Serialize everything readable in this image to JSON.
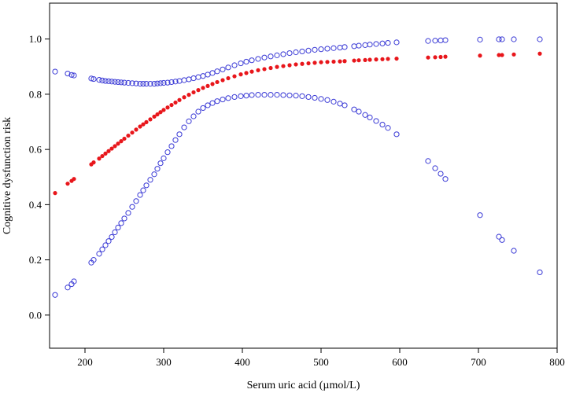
{
  "chart_data": {
    "type": "scatter",
    "title": "",
    "xlabel": "Serum uric acid (µmol/L)",
    "ylabel": "Cognitive dysfunction risk",
    "xlim": [
      155,
      800
    ],
    "ylim": [
      -0.12,
      1.13
    ],
    "xticks": [
      200,
      300,
      400,
      500,
      600,
      700,
      800
    ],
    "yticks": [
      0.0,
      0.2,
      0.4,
      0.6,
      0.8,
      1.0
    ],
    "xtick_labels": [
      "200",
      "300",
      "400",
      "500",
      "600",
      "700",
      "800"
    ],
    "ytick_labels": [
      "0.0",
      "0.2",
      "0.4",
      "0.6",
      "0.8",
      "1.0"
    ],
    "grid": false,
    "legend": "none",
    "colors": {
      "estimate": "#e8161b",
      "confidence_band": "#3c3cd6"
    },
    "x": [
      162,
      178,
      183,
      186,
      208,
      211,
      218,
      222,
      226,
      230,
      234,
      238,
      242,
      246,
      250,
      255,
      260,
      265,
      270,
      274,
      278,
      283,
      288,
      292,
      296,
      300,
      305,
      310,
      315,
      320,
      326,
      332,
      338,
      344,
      350,
      356,
      362,
      368,
      375,
      382,
      390,
      398,
      405,
      412,
      420,
      428,
      436,
      444,
      452,
      460,
      468,
      476,
      484,
      492,
      500,
      508,
      516,
      524,
      530,
      542,
      548,
      556,
      562,
      570,
      578,
      585,
      596,
      636,
      645,
      652,
      658,
      702,
      726,
      730,
      745,
      778
    ],
    "series": [
      {
        "name": "upper 95% CI",
        "marker": "open-circle",
        "values": [
          0.882,
          0.875,
          0.87,
          0.868,
          0.857,
          0.855,
          0.852,
          0.85,
          0.848,
          0.847,
          0.846,
          0.845,
          0.844,
          0.843,
          0.842,
          0.841,
          0.84,
          0.839,
          0.838,
          0.838,
          0.838,
          0.838,
          0.838,
          0.839,
          0.84,
          0.841,
          0.842,
          0.844,
          0.846,
          0.848,
          0.851,
          0.854,
          0.858,
          0.862,
          0.866,
          0.871,
          0.877,
          0.883,
          0.89,
          0.897,
          0.905,
          0.912,
          0.918,
          0.923,
          0.928,
          0.933,
          0.937,
          0.941,
          0.945,
          0.949,
          0.952,
          0.955,
          0.958,
          0.961,
          0.963,
          0.965,
          0.967,
          0.969,
          0.971,
          0.974,
          0.976,
          0.978,
          0.98,
          0.982,
          0.984,
          0.986,
          0.988,
          0.993,
          0.994,
          0.995,
          0.996,
          0.998,
          0.999,
          0.999,
          0.999,
          0.999
        ]
      },
      {
        "name": "estimate",
        "marker": "filled-circle",
        "values": [
          0.442,
          0.476,
          0.486,
          0.493,
          0.546,
          0.553,
          0.567,
          0.576,
          0.585,
          0.594,
          0.603,
          0.612,
          0.621,
          0.63,
          0.639,
          0.65,
          0.661,
          0.672,
          0.683,
          0.691,
          0.699,
          0.709,
          0.719,
          0.727,
          0.735,
          0.743,
          0.752,
          0.761,
          0.77,
          0.779,
          0.789,
          0.798,
          0.807,
          0.815,
          0.823,
          0.83,
          0.837,
          0.844,
          0.851,
          0.858,
          0.865,
          0.872,
          0.877,
          0.882,
          0.887,
          0.891,
          0.895,
          0.899,
          0.902,
          0.905,
          0.908,
          0.91,
          0.912,
          0.914,
          0.916,
          0.917,
          0.918,
          0.919,
          0.92,
          0.922,
          0.923,
          0.924,
          0.925,
          0.926,
          0.927,
          0.928,
          0.929,
          0.933,
          0.934,
          0.935,
          0.936,
          0.94,
          0.942,
          0.942,
          0.944,
          0.947
        ]
      },
      {
        "name": "lower 95% CI",
        "marker": "open-circle",
        "values": [
          0.073,
          0.1,
          0.112,
          0.122,
          0.19,
          0.2,
          0.222,
          0.238,
          0.253,
          0.268,
          0.283,
          0.3,
          0.317,
          0.333,
          0.35,
          0.37,
          0.392,
          0.413,
          0.435,
          0.452,
          0.47,
          0.49,
          0.51,
          0.53,
          0.55,
          0.568,
          0.59,
          0.612,
          0.634,
          0.655,
          0.68,
          0.702,
          0.72,
          0.737,
          0.75,
          0.76,
          0.768,
          0.775,
          0.781,
          0.786,
          0.79,
          0.793,
          0.795,
          0.797,
          0.798,
          0.798,
          0.798,
          0.798,
          0.797,
          0.796,
          0.795,
          0.793,
          0.79,
          0.787,
          0.783,
          0.779,
          0.773,
          0.766,
          0.76,
          0.745,
          0.737,
          0.725,
          0.716,
          0.703,
          0.69,
          0.678,
          0.655,
          0.558,
          0.532,
          0.512,
          0.493,
          0.362,
          0.284,
          0.272,
          0.233,
          0.155
        ]
      }
    ]
  }
}
